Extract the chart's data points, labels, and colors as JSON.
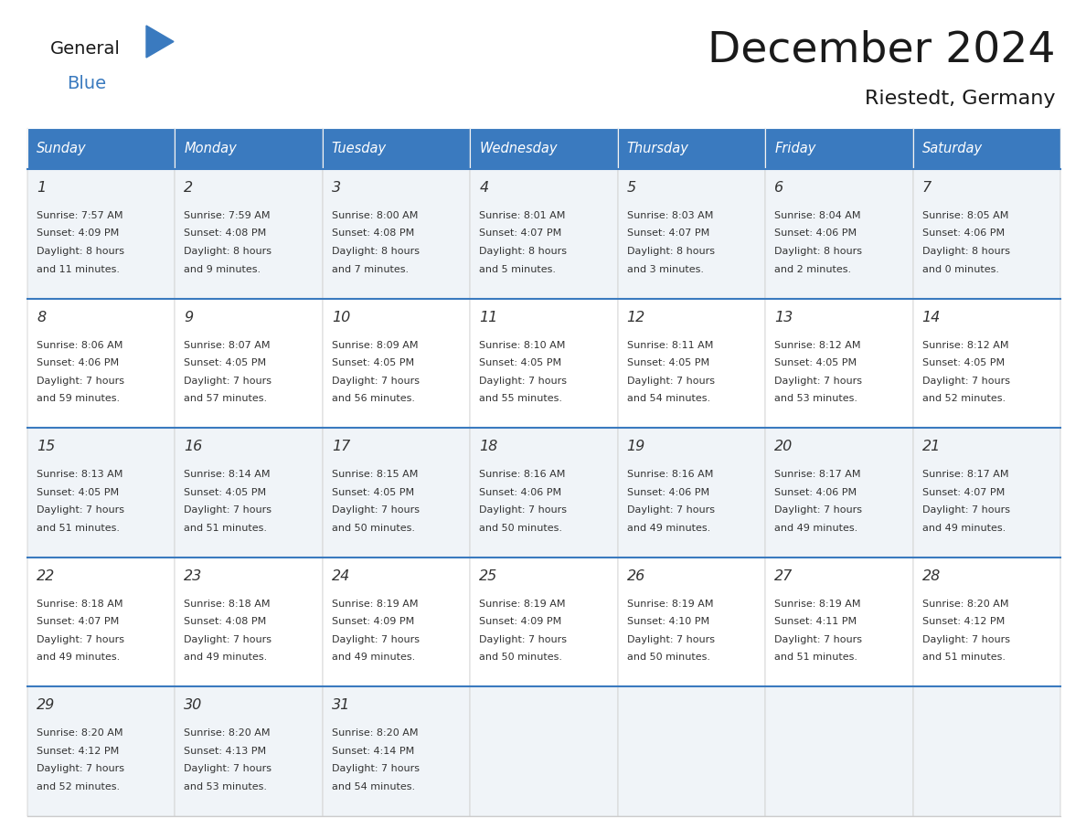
{
  "title": "December 2024",
  "subtitle": "Riestedt, Germany",
  "header_bg": "#3a7abf",
  "header_text_color": "#ffffff",
  "cell_bg_odd": "#f0f4f8",
  "cell_bg_even": "#ffffff",
  "text_color": "#333333",
  "sep_line_color": "#3a7abf",
  "border_color": "#cccccc",
  "day_names": [
    "Sunday",
    "Monday",
    "Tuesday",
    "Wednesday",
    "Thursday",
    "Friday",
    "Saturday"
  ],
  "days": [
    {
      "day": 1,
      "col": 0,
      "row": 0,
      "sunrise": "7:57 AM",
      "sunset": "4:09 PM",
      "dl_h": "8 hours",
      "dl_m": "and 11 minutes."
    },
    {
      "day": 2,
      "col": 1,
      "row": 0,
      "sunrise": "7:59 AM",
      "sunset": "4:08 PM",
      "dl_h": "8 hours",
      "dl_m": "and 9 minutes."
    },
    {
      "day": 3,
      "col": 2,
      "row": 0,
      "sunrise": "8:00 AM",
      "sunset": "4:08 PM",
      "dl_h": "8 hours",
      "dl_m": "and 7 minutes."
    },
    {
      "day": 4,
      "col": 3,
      "row": 0,
      "sunrise": "8:01 AM",
      "sunset": "4:07 PM",
      "dl_h": "8 hours",
      "dl_m": "and 5 minutes."
    },
    {
      "day": 5,
      "col": 4,
      "row": 0,
      "sunrise": "8:03 AM",
      "sunset": "4:07 PM",
      "dl_h": "8 hours",
      "dl_m": "and 3 minutes."
    },
    {
      "day": 6,
      "col": 5,
      "row": 0,
      "sunrise": "8:04 AM",
      "sunset": "4:06 PM",
      "dl_h": "8 hours",
      "dl_m": "and 2 minutes."
    },
    {
      "day": 7,
      "col": 6,
      "row": 0,
      "sunrise": "8:05 AM",
      "sunset": "4:06 PM",
      "dl_h": "8 hours",
      "dl_m": "and 0 minutes."
    },
    {
      "day": 8,
      "col": 0,
      "row": 1,
      "sunrise": "8:06 AM",
      "sunset": "4:06 PM",
      "dl_h": "7 hours",
      "dl_m": "and 59 minutes."
    },
    {
      "day": 9,
      "col": 1,
      "row": 1,
      "sunrise": "8:07 AM",
      "sunset": "4:05 PM",
      "dl_h": "7 hours",
      "dl_m": "and 57 minutes."
    },
    {
      "day": 10,
      "col": 2,
      "row": 1,
      "sunrise": "8:09 AM",
      "sunset": "4:05 PM",
      "dl_h": "7 hours",
      "dl_m": "and 56 minutes."
    },
    {
      "day": 11,
      "col": 3,
      "row": 1,
      "sunrise": "8:10 AM",
      "sunset": "4:05 PM",
      "dl_h": "7 hours",
      "dl_m": "and 55 minutes."
    },
    {
      "day": 12,
      "col": 4,
      "row": 1,
      "sunrise": "8:11 AM",
      "sunset": "4:05 PM",
      "dl_h": "7 hours",
      "dl_m": "and 54 minutes."
    },
    {
      "day": 13,
      "col": 5,
      "row": 1,
      "sunrise": "8:12 AM",
      "sunset": "4:05 PM",
      "dl_h": "7 hours",
      "dl_m": "and 53 minutes."
    },
    {
      "day": 14,
      "col": 6,
      "row": 1,
      "sunrise": "8:12 AM",
      "sunset": "4:05 PM",
      "dl_h": "7 hours",
      "dl_m": "and 52 minutes."
    },
    {
      "day": 15,
      "col": 0,
      "row": 2,
      "sunrise": "8:13 AM",
      "sunset": "4:05 PM",
      "dl_h": "7 hours",
      "dl_m": "and 51 minutes."
    },
    {
      "day": 16,
      "col": 1,
      "row": 2,
      "sunrise": "8:14 AM",
      "sunset": "4:05 PM",
      "dl_h": "7 hours",
      "dl_m": "and 51 minutes."
    },
    {
      "day": 17,
      "col": 2,
      "row": 2,
      "sunrise": "8:15 AM",
      "sunset": "4:05 PM",
      "dl_h": "7 hours",
      "dl_m": "and 50 minutes."
    },
    {
      "day": 18,
      "col": 3,
      "row": 2,
      "sunrise": "8:16 AM",
      "sunset": "4:06 PM",
      "dl_h": "7 hours",
      "dl_m": "and 50 minutes."
    },
    {
      "day": 19,
      "col": 4,
      "row": 2,
      "sunrise": "8:16 AM",
      "sunset": "4:06 PM",
      "dl_h": "7 hours",
      "dl_m": "and 49 minutes."
    },
    {
      "day": 20,
      "col": 5,
      "row": 2,
      "sunrise": "8:17 AM",
      "sunset": "4:06 PM",
      "dl_h": "7 hours",
      "dl_m": "and 49 minutes."
    },
    {
      "day": 21,
      "col": 6,
      "row": 2,
      "sunrise": "8:17 AM",
      "sunset": "4:07 PM",
      "dl_h": "7 hours",
      "dl_m": "and 49 minutes."
    },
    {
      "day": 22,
      "col": 0,
      "row": 3,
      "sunrise": "8:18 AM",
      "sunset": "4:07 PM",
      "dl_h": "7 hours",
      "dl_m": "and 49 minutes."
    },
    {
      "day": 23,
      "col": 1,
      "row": 3,
      "sunrise": "8:18 AM",
      "sunset": "4:08 PM",
      "dl_h": "7 hours",
      "dl_m": "and 49 minutes."
    },
    {
      "day": 24,
      "col": 2,
      "row": 3,
      "sunrise": "8:19 AM",
      "sunset": "4:09 PM",
      "dl_h": "7 hours",
      "dl_m": "and 49 minutes."
    },
    {
      "day": 25,
      "col": 3,
      "row": 3,
      "sunrise": "8:19 AM",
      "sunset": "4:09 PM",
      "dl_h": "7 hours",
      "dl_m": "and 50 minutes."
    },
    {
      "day": 26,
      "col": 4,
      "row": 3,
      "sunrise": "8:19 AM",
      "sunset": "4:10 PM",
      "dl_h": "7 hours",
      "dl_m": "and 50 minutes."
    },
    {
      "day": 27,
      "col": 5,
      "row": 3,
      "sunrise": "8:19 AM",
      "sunset": "4:11 PM",
      "dl_h": "7 hours",
      "dl_m": "and 51 minutes."
    },
    {
      "day": 28,
      "col": 6,
      "row": 3,
      "sunrise": "8:20 AM",
      "sunset": "4:12 PM",
      "dl_h": "7 hours",
      "dl_m": "and 51 minutes."
    },
    {
      "day": 29,
      "col": 0,
      "row": 4,
      "sunrise": "8:20 AM",
      "sunset": "4:12 PM",
      "dl_h": "7 hours",
      "dl_m": "and 52 minutes."
    },
    {
      "day": 30,
      "col": 1,
      "row": 4,
      "sunrise": "8:20 AM",
      "sunset": "4:13 PM",
      "dl_h": "7 hours",
      "dl_m": "and 53 minutes."
    },
    {
      "day": 31,
      "col": 2,
      "row": 4,
      "sunrise": "8:20 AM",
      "sunset": "4:14 PM",
      "dl_h": "7 hours",
      "dl_m": "and 54 minutes."
    }
  ]
}
